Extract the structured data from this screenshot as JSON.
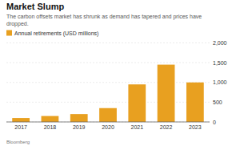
{
  "chart_data": {
    "type": "bar",
    "title": "Market Slump",
    "subtitle": "The carbon offsets market has shrunk as demand has tapered and prices have\ndropped.",
    "source": "Bloomberg",
    "categories": [
      "2017",
      "2018",
      "2019",
      "2020",
      "2021",
      "2022",
      "2023"
    ],
    "series": [
      {
        "name": "Annual retirements (USD millions)",
        "color": "#E8A020",
        "values": [
          100,
          150,
          200,
          350,
          950,
          1450,
          1000
        ]
      }
    ],
    "ylim": [
      0,
      2000
    ],
    "yticks": [
      0,
      500,
      {
        "value": 1000,
        "label": "1,000"
      },
      {
        "value": 1500,
        "label": "1,500"
      },
      {
        "value": 2000,
        "label": "2,000"
      }
    ],
    "grid": true
  }
}
